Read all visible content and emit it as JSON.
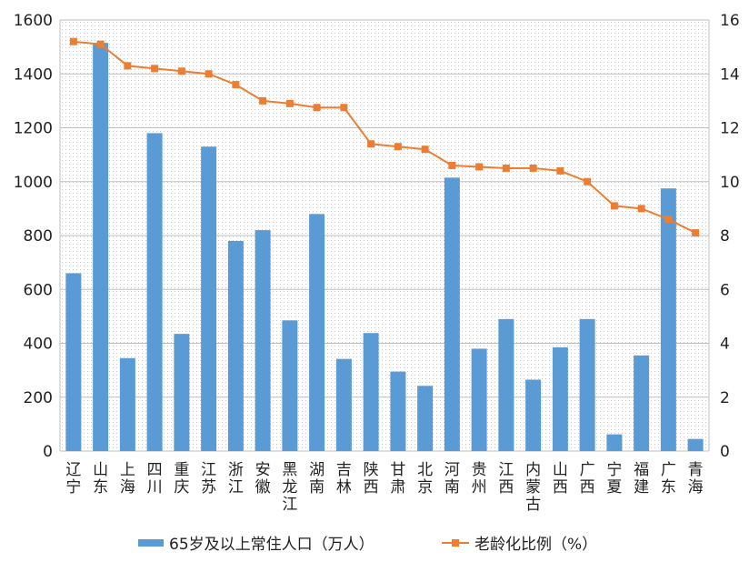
{
  "chart_data": {
    "type": "bar",
    "categories": [
      "辽宁",
      "山东",
      "上海",
      "四川",
      "重庆",
      "江苏",
      "浙江",
      "安徽",
      "黑龙江",
      "湖南",
      "吉林",
      "陕西",
      "甘肃",
      "北京",
      "河南",
      "贵州",
      "江西",
      "内蒙古",
      "山西",
      "广西",
      "宁夏",
      "福建",
      "广东",
      "青海"
    ],
    "series": [
      {
        "name": "65岁及以上常住人口（万人）",
        "type": "bar",
        "axis": "left",
        "values": [
          660,
          1515,
          345,
          1180,
          435,
          1130,
          780,
          820,
          485,
          880,
          342,
          438,
          295,
          242,
          1015,
          380,
          490,
          265,
          385,
          490,
          62,
          355,
          975,
          45
        ]
      },
      {
        "name": "老龄化比例（%）",
        "type": "line",
        "axis": "right",
        "values": [
          15.2,
          15.1,
          14.3,
          14.2,
          14.1,
          14.0,
          13.6,
          13.0,
          12.9,
          12.75,
          12.75,
          11.4,
          11.3,
          11.2,
          10.6,
          10.55,
          10.5,
          10.5,
          10.4,
          10.0,
          9.1,
          9.0,
          8.6,
          8.1
        ]
      }
    ],
    "y_left": {
      "min": 0,
      "max": 1600,
      "ticks": [
        "0",
        "200",
        "400",
        "600",
        "800",
        "1000",
        "1200",
        "1400",
        "1600"
      ]
    },
    "y_right": {
      "min": 0,
      "max": 16,
      "ticks": [
        "0",
        "2",
        "4",
        "6",
        "8",
        "10",
        "12",
        "14",
        "16"
      ]
    },
    "grid": true,
    "legend": "bottom",
    "colors": {
      "bar": "#5B9BD5",
      "line": "#ED7D31",
      "grid": "#bfbfbf"
    }
  }
}
